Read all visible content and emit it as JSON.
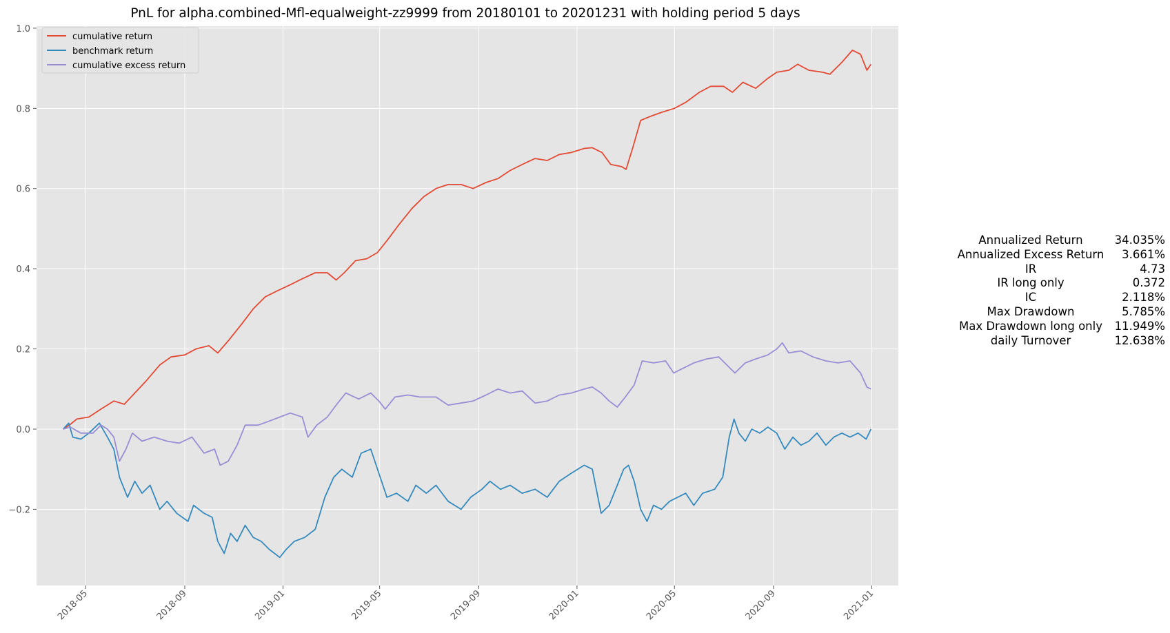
{
  "chart_data": {
    "type": "line",
    "title": "PnL for alpha.combined-Mfl-equalweight-zz9999 from 20180101 to 20201231 with holding period 5 days",
    "xlabel": "",
    "ylabel": "",
    "x_range": [
      "2018-03-01",
      "2021-02-03"
    ],
    "ylim": [
      -0.39,
      1.005
    ],
    "grid": true,
    "legend_position": "top-left",
    "x_ticks": [
      "2018-05",
      "2018-09",
      "2019-01",
      "2019-05",
      "2019-09",
      "2020-01",
      "2020-05",
      "2020-09",
      "2021-01"
    ],
    "y_ticks": [
      "1.0",
      "0.8",
      "0.6",
      "0.4",
      "0.2",
      "0.0",
      "−0.2"
    ],
    "y_tick_values": [
      1.0,
      0.8,
      0.6,
      0.4,
      0.2,
      0.0,
      -0.2
    ],
    "series": [
      {
        "name": "cumulative return",
        "color": "#e24a33",
        "points": [
          [
            "2018-04-03",
            0.0
          ],
          [
            "2018-04-12",
            0.012
          ],
          [
            "2018-04-20",
            0.025
          ],
          [
            "2018-05-05",
            0.03
          ],
          [
            "2018-05-20",
            0.05
          ],
          [
            "2018-06-05",
            0.07
          ],
          [
            "2018-06-18",
            0.062
          ],
          [
            "2018-07-01",
            0.09
          ],
          [
            "2018-07-15",
            0.12
          ],
          [
            "2018-08-01",
            0.16
          ],
          [
            "2018-08-15",
            0.18
          ],
          [
            "2018-09-01",
            0.185
          ],
          [
            "2018-09-15",
            0.2
          ],
          [
            "2018-10-01",
            0.208
          ],
          [
            "2018-10-12",
            0.19
          ],
          [
            "2018-10-25",
            0.22
          ],
          [
            "2018-11-10",
            0.26
          ],
          [
            "2018-11-25",
            0.3
          ],
          [
            "2018-12-10",
            0.33
          ],
          [
            "2018-12-25",
            0.345
          ],
          [
            "2019-01-10",
            0.36
          ],
          [
            "2019-01-25",
            0.375
          ],
          [
            "2019-02-10",
            0.39
          ],
          [
            "2019-02-25",
            0.39
          ],
          [
            "2019-03-08",
            0.372
          ],
          [
            "2019-03-18",
            0.39
          ],
          [
            "2019-04-01",
            0.42
          ],
          [
            "2019-04-15",
            0.425
          ],
          [
            "2019-04-28",
            0.44
          ],
          [
            "2019-05-10",
            0.47
          ],
          [
            "2019-05-25",
            0.51
          ],
          [
            "2019-06-10",
            0.55
          ],
          [
            "2019-06-25",
            0.58
          ],
          [
            "2019-07-10",
            0.6
          ],
          [
            "2019-07-25",
            0.61
          ],
          [
            "2019-08-10",
            0.61
          ],
          [
            "2019-08-25",
            0.6
          ],
          [
            "2019-09-10",
            0.615
          ],
          [
            "2019-09-25",
            0.625
          ],
          [
            "2019-10-10",
            0.645
          ],
          [
            "2019-10-25",
            0.66
          ],
          [
            "2019-11-10",
            0.675
          ],
          [
            "2019-11-25",
            0.67
          ],
          [
            "2019-12-10",
            0.685
          ],
          [
            "2019-12-25",
            0.69
          ],
          [
            "2020-01-10",
            0.7
          ],
          [
            "2020-01-20",
            0.702
          ],
          [
            "2020-02-01",
            0.69
          ],
          [
            "2020-02-12",
            0.66
          ],
          [
            "2020-02-25",
            0.655
          ],
          [
            "2020-03-02",
            0.648
          ],
          [
            "2020-03-10",
            0.7
          ],
          [
            "2020-03-20",
            0.77
          ],
          [
            "2020-04-01",
            0.78
          ],
          [
            "2020-04-15",
            0.79
          ],
          [
            "2020-05-01",
            0.8
          ],
          [
            "2020-05-15",
            0.815
          ],
          [
            "2020-06-01",
            0.84
          ],
          [
            "2020-06-15",
            0.855
          ],
          [
            "2020-07-01",
            0.855
          ],
          [
            "2020-07-12",
            0.84
          ],
          [
            "2020-07-25",
            0.865
          ],
          [
            "2020-08-10",
            0.85
          ],
          [
            "2020-08-25",
            0.875
          ],
          [
            "2020-09-05",
            0.89
          ],
          [
            "2020-09-20",
            0.895
          ],
          [
            "2020-10-01",
            0.91
          ],
          [
            "2020-10-15",
            0.895
          ],
          [
            "2020-11-01",
            0.89
          ],
          [
            "2020-11-10",
            0.885
          ],
          [
            "2020-11-25",
            0.915
          ],
          [
            "2020-12-08",
            0.945
          ],
          [
            "2020-12-18",
            0.935
          ],
          [
            "2020-12-26",
            0.895
          ],
          [
            "2020-12-31",
            0.91
          ]
        ]
      },
      {
        "name": "benchmark return",
        "color": "#348abd",
        "points": [
          [
            "2018-04-03",
            0.0
          ],
          [
            "2018-04-10",
            0.015
          ],
          [
            "2018-04-15",
            -0.02
          ],
          [
            "2018-04-25",
            -0.025
          ],
          [
            "2018-05-05",
            -0.01
          ],
          [
            "2018-05-18",
            0.015
          ],
          [
            "2018-05-28",
            -0.02
          ],
          [
            "2018-06-05",
            -0.05
          ],
          [
            "2018-06-12",
            -0.12
          ],
          [
            "2018-06-22",
            -0.17
          ],
          [
            "2018-07-01",
            -0.13
          ],
          [
            "2018-07-10",
            -0.16
          ],
          [
            "2018-07-20",
            -0.14
          ],
          [
            "2018-08-01",
            -0.2
          ],
          [
            "2018-08-10",
            -0.18
          ],
          [
            "2018-08-22",
            -0.21
          ],
          [
            "2018-09-05",
            -0.23
          ],
          [
            "2018-09-12",
            -0.19
          ],
          [
            "2018-09-25",
            -0.21
          ],
          [
            "2018-10-05",
            -0.22
          ],
          [
            "2018-10-12",
            -0.28
          ],
          [
            "2018-10-20",
            -0.31
          ],
          [
            "2018-10-28",
            -0.26
          ],
          [
            "2018-11-05",
            -0.28
          ],
          [
            "2018-11-15",
            -0.24
          ],
          [
            "2018-11-25",
            -0.27
          ],
          [
            "2018-12-05",
            -0.28
          ],
          [
            "2018-12-15",
            -0.3
          ],
          [
            "2018-12-28",
            -0.32
          ],
          [
            "2019-01-05",
            -0.3
          ],
          [
            "2019-01-15",
            -0.28
          ],
          [
            "2019-01-28",
            -0.27
          ],
          [
            "2019-02-10",
            -0.25
          ],
          [
            "2019-02-22",
            -0.17
          ],
          [
            "2019-03-05",
            -0.12
          ],
          [
            "2019-03-15",
            -0.1
          ],
          [
            "2019-03-28",
            -0.12
          ],
          [
            "2019-04-08",
            -0.06
          ],
          [
            "2019-04-20",
            -0.05
          ],
          [
            "2019-04-30",
            -0.11
          ],
          [
            "2019-05-10",
            -0.17
          ],
          [
            "2019-05-22",
            -0.16
          ],
          [
            "2019-06-05",
            -0.18
          ],
          [
            "2019-06-15",
            -0.14
          ],
          [
            "2019-06-28",
            -0.16
          ],
          [
            "2019-07-10",
            -0.14
          ],
          [
            "2019-07-25",
            -0.18
          ],
          [
            "2019-08-10",
            -0.2
          ],
          [
            "2019-08-22",
            -0.17
          ],
          [
            "2019-09-05",
            -0.15
          ],
          [
            "2019-09-15",
            -0.13
          ],
          [
            "2019-09-28",
            -0.15
          ],
          [
            "2019-10-10",
            -0.14
          ],
          [
            "2019-10-25",
            -0.16
          ],
          [
            "2019-11-10",
            -0.15
          ],
          [
            "2019-11-25",
            -0.17
          ],
          [
            "2019-12-10",
            -0.13
          ],
          [
            "2019-12-25",
            -0.11
          ],
          [
            "2020-01-10",
            -0.09
          ],
          [
            "2020-01-20",
            -0.1
          ],
          [
            "2020-01-31",
            -0.21
          ],
          [
            "2020-02-10",
            -0.19
          ],
          [
            "2020-02-20",
            -0.14
          ],
          [
            "2020-02-28",
            -0.1
          ],
          [
            "2020-03-05",
            -0.09
          ],
          [
            "2020-03-12",
            -0.13
          ],
          [
            "2020-03-20",
            -0.2
          ],
          [
            "2020-03-28",
            -0.23
          ],
          [
            "2020-04-05",
            -0.19
          ],
          [
            "2020-04-15",
            -0.2
          ],
          [
            "2020-04-25",
            -0.18
          ],
          [
            "2020-05-05",
            -0.17
          ],
          [
            "2020-05-15",
            -0.16
          ],
          [
            "2020-05-25",
            -0.19
          ],
          [
            "2020-06-05",
            -0.16
          ],
          [
            "2020-06-20",
            -0.15
          ],
          [
            "2020-06-30",
            -0.12
          ],
          [
            "2020-07-08",
            -0.02
          ],
          [
            "2020-07-14",
            0.025
          ],
          [
            "2020-07-20",
            -0.01
          ],
          [
            "2020-07-28",
            -0.03
          ],
          [
            "2020-08-05",
            0.0
          ],
          [
            "2020-08-15",
            -0.01
          ],
          [
            "2020-08-25",
            0.005
          ],
          [
            "2020-09-05",
            -0.01
          ],
          [
            "2020-09-15",
            -0.05
          ],
          [
            "2020-09-25",
            -0.02
          ],
          [
            "2020-10-05",
            -0.04
          ],
          [
            "2020-10-15",
            -0.03
          ],
          [
            "2020-10-25",
            -0.01
          ],
          [
            "2020-11-05",
            -0.04
          ],
          [
            "2020-11-15",
            -0.02
          ],
          [
            "2020-11-25",
            -0.01
          ],
          [
            "2020-12-05",
            -0.02
          ],
          [
            "2020-12-15",
            -0.01
          ],
          [
            "2020-12-25",
            -0.025
          ],
          [
            "2020-12-31",
            0.0
          ]
        ]
      },
      {
        "name": "cumulative excess return",
        "color": "#988ed5",
        "points": [
          [
            "2018-04-03",
            0.0
          ],
          [
            "2018-04-12",
            0.005
          ],
          [
            "2018-04-25",
            -0.01
          ],
          [
            "2018-05-10",
            -0.01
          ],
          [
            "2018-05-20",
            0.01
          ],
          [
            "2018-05-28",
            0.0
          ],
          [
            "2018-06-05",
            -0.02
          ],
          [
            "2018-06-12",
            -0.08
          ],
          [
            "2018-06-20",
            -0.05
          ],
          [
            "2018-06-28",
            -0.01
          ],
          [
            "2018-07-10",
            -0.03
          ],
          [
            "2018-07-25",
            -0.02
          ],
          [
            "2018-08-10",
            -0.03
          ],
          [
            "2018-08-25",
            -0.035
          ],
          [
            "2018-09-10",
            -0.02
          ],
          [
            "2018-09-25",
            -0.06
          ],
          [
            "2018-10-08",
            -0.05
          ],
          [
            "2018-10-15",
            -0.09
          ],
          [
            "2018-10-25",
            -0.08
          ],
          [
            "2018-11-05",
            -0.04
          ],
          [
            "2018-11-15",
            0.01
          ],
          [
            "2018-12-01",
            0.01
          ],
          [
            "2018-12-15",
            0.02
          ],
          [
            "2018-12-28",
            0.03
          ],
          [
            "2019-01-10",
            0.04
          ],
          [
            "2019-01-25",
            0.03
          ],
          [
            "2019-02-01",
            -0.02
          ],
          [
            "2019-02-12",
            0.01
          ],
          [
            "2019-02-25",
            0.03
          ],
          [
            "2019-03-08",
            0.06
          ],
          [
            "2019-03-20",
            0.09
          ],
          [
            "2019-04-05",
            0.075
          ],
          [
            "2019-04-20",
            0.09
          ],
          [
            "2019-04-30",
            0.07
          ],
          [
            "2019-05-08",
            0.05
          ],
          [
            "2019-05-20",
            0.08
          ],
          [
            "2019-06-05",
            0.085
          ],
          [
            "2019-06-20",
            0.08
          ],
          [
            "2019-07-10",
            0.08
          ],
          [
            "2019-07-25",
            0.06
          ],
          [
            "2019-08-10",
            0.065
          ],
          [
            "2019-08-25",
            0.07
          ],
          [
            "2019-09-10",
            0.085
          ],
          [
            "2019-09-25",
            0.1
          ],
          [
            "2019-10-10",
            0.09
          ],
          [
            "2019-10-25",
            0.095
          ],
          [
            "2019-11-10",
            0.065
          ],
          [
            "2019-11-25",
            0.07
          ],
          [
            "2019-12-10",
            0.085
          ],
          [
            "2019-12-25",
            0.09
          ],
          [
            "2020-01-10",
            0.1
          ],
          [
            "2020-01-20",
            0.105
          ],
          [
            "2020-01-31",
            0.09
          ],
          [
            "2020-02-10",
            0.07
          ],
          [
            "2020-02-20",
            0.055
          ],
          [
            "2020-03-01",
            0.08
          ],
          [
            "2020-03-12",
            0.11
          ],
          [
            "2020-03-22",
            0.17
          ],
          [
            "2020-04-05",
            0.165
          ],
          [
            "2020-04-20",
            0.17
          ],
          [
            "2020-04-30",
            0.14
          ],
          [
            "2020-05-10",
            0.15
          ],
          [
            "2020-05-25",
            0.165
          ],
          [
            "2020-06-10",
            0.175
          ],
          [
            "2020-06-25",
            0.18
          ],
          [
            "2020-07-05",
            0.16
          ],
          [
            "2020-07-15",
            0.14
          ],
          [
            "2020-07-28",
            0.165
          ],
          [
            "2020-08-10",
            0.175
          ],
          [
            "2020-08-25",
            0.185
          ],
          [
            "2020-09-05",
            0.2
          ],
          [
            "2020-09-12",
            0.215
          ],
          [
            "2020-09-20",
            0.19
          ],
          [
            "2020-10-05",
            0.195
          ],
          [
            "2020-10-20",
            0.18
          ],
          [
            "2020-11-05",
            0.17
          ],
          [
            "2020-11-20",
            0.165
          ],
          [
            "2020-12-05",
            0.17
          ],
          [
            "2020-12-18",
            0.14
          ],
          [
            "2020-12-26",
            0.105
          ],
          [
            "2020-12-31",
            0.1
          ]
        ]
      }
    ]
  },
  "stats": [
    {
      "label": "Annualized Return",
      "value": "34.035%"
    },
    {
      "label": "Annualized Excess Return",
      "value": "3.661%"
    },
    {
      "label": "IR",
      "value": "4.73"
    },
    {
      "label": "IR long only",
      "value": "0.372"
    },
    {
      "label": "IC",
      "value": "2.118%"
    },
    {
      "label": "Max Drawdown",
      "value": "5.785%"
    },
    {
      "label": "Max Drawdown long only",
      "value": "11.949%"
    },
    {
      "label": "daily Turnover",
      "value": "12.638%"
    }
  ]
}
